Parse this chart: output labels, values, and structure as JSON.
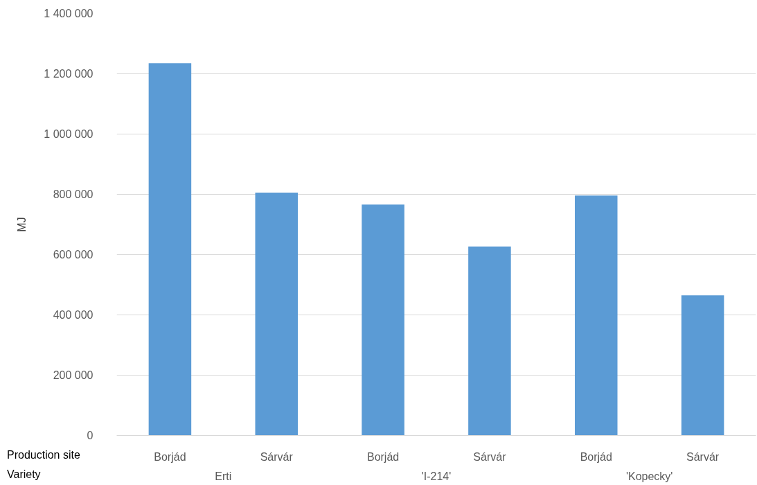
{
  "chart_data": {
    "type": "bar",
    "ylabel": "MJ",
    "categories": [
      [
        "Erti",
        "Borjád"
      ],
      [
        null,
        "Sárvár"
      ],
      [
        "'I-214'",
        "Borjád"
      ],
      [
        null,
        "Sárvár"
      ],
      [
        "'Kopecky'",
        "Borjád"
      ],
      [
        null,
        "Sárvár"
      ]
    ],
    "values": [
      1235000,
      806000,
      766000,
      627000,
      796000,
      465000
    ],
    "color": "#5b9bd5",
    "ylim": [
      0,
      1400000
    ],
    "yticks": [
      {
        "value": 0,
        "label": "0"
      },
      {
        "value": 200000,
        "label": "200 000"
      },
      {
        "value": 400000,
        "label": "400 000"
      },
      {
        "value": 600000,
        "label": "600 000"
      },
      {
        "value": 800000,
        "label": "800 000"
      },
      {
        "value": 1000000,
        "label": "1 000 000"
      },
      {
        "value": 1200000,
        "label": "1 200 000"
      },
      {
        "value": 1400000,
        "label": "1 400 000"
      }
    ],
    "grid": "y",
    "annotations": [
      "Production site",
      "Variety"
    ]
  }
}
